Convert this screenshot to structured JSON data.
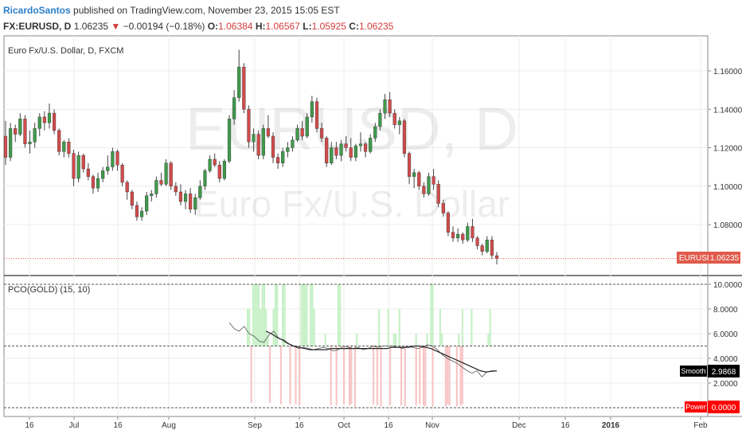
{
  "header": {
    "author": "RicardoSantos",
    "published_text": "published on TradingView.com, November 23, 2015 15:05 EST",
    "symbol": "FX:EURUSD, D",
    "last": "1.06235",
    "change": "−0.00194 (−0.18%)",
    "o_label": "O:",
    "o_value": "1.06384",
    "h_label": "H:",
    "h_value": "1.06567",
    "l_label": "L:",
    "l_value": "1.05925",
    "c_label": "C:",
    "c_value": "1.06235"
  },
  "main_pane": {
    "legend": "Euro Fx/U.S. Dollar, D, FXCM",
    "watermark_symbol": "EURUSD, D",
    "watermark_name": "Euro Fx/U.S. Dollar",
    "price_ticks": [
      "1.16000",
      "1.14000",
      "1.12000",
      "1.10000",
      "1.08000"
    ],
    "price_tick_values": [
      1.16,
      1.14,
      1.12,
      1.1,
      1.08
    ],
    "last_price_label": "EURUSD",
    "last_price_value": "1.06235",
    "last_price": 1.06235
  },
  "indicator_pane": {
    "legend": "PCO(GOLD) (15, 10)",
    "ticks": [
      "10.0000",
      "8.0000",
      "6.0000",
      "4.0000",
      "2.0000"
    ],
    "tick_values": [
      10,
      8,
      6,
      4,
      2
    ],
    "smooth_label": "Smooth",
    "smooth_value": "2.9868",
    "power_label": "Power",
    "power_value": "0.0000",
    "upper_level": 5,
    "lower_level": 0,
    "top_level": 10
  },
  "time_axis": {
    "labels": [
      "16",
      "Jul",
      "16",
      "Aug",
      "Sep",
      "16",
      "Oct",
      "16",
      "Nov",
      "Dec",
      "16",
      "2016",
      "Feb"
    ]
  },
  "colors": {
    "up": "#3f9a4a",
    "down": "#d24b4b",
    "power_up": "#c5f0c5",
    "power_down": "#f7c3c3",
    "smooth_line": "#333333",
    "last_price": "#e05a4b",
    "power_badge": "#ff0000",
    "smooth_badge": "#000000"
  },
  "chart_data": {
    "type": "candlestick",
    "ohlc": [
      [
        1.126,
        1.134,
        1.111,
        1.115
      ],
      [
        1.115,
        1.133,
        1.113,
        1.13
      ],
      [
        1.13,
        1.132,
        1.123,
        1.127
      ],
      [
        1.127,
        1.138,
        1.126,
        1.135
      ],
      [
        1.135,
        1.137,
        1.12,
        1.122
      ],
      [
        1.122,
        1.129,
        1.117,
        1.123
      ],
      [
        1.123,
        1.133,
        1.12,
        1.13
      ],
      [
        1.13,
        1.138,
        1.126,
        1.136
      ],
      [
        1.136,
        1.139,
        1.129,
        1.133
      ],
      [
        1.133,
        1.143,
        1.13,
        1.138
      ],
      [
        1.138,
        1.14,
        1.127,
        1.129
      ],
      [
        1.129,
        1.13,
        1.116,
        1.118
      ],
      [
        1.118,
        1.124,
        1.115,
        1.123
      ],
      [
        1.123,
        1.125,
        1.115,
        1.117
      ],
      [
        1.117,
        1.119,
        1.1,
        1.104
      ],
      [
        1.104,
        1.118,
        1.102,
        1.116
      ],
      [
        1.116,
        1.117,
        1.107,
        1.109
      ],
      [
        1.109,
        1.112,
        1.103,
        1.105
      ],
      [
        1.105,
        1.106,
        1.096,
        1.099
      ],
      [
        1.099,
        1.107,
        1.097,
        1.104
      ],
      [
        1.104,
        1.11,
        1.102,
        1.108
      ],
      [
        1.108,
        1.116,
        1.106,
        1.11
      ],
      [
        1.11,
        1.12,
        1.108,
        1.118
      ],
      [
        1.118,
        1.119,
        1.108,
        1.111
      ],
      [
        1.111,
        1.112,
        1.1,
        1.102
      ],
      [
        1.102,
        1.103,
        1.093,
        1.097
      ],
      [
        1.097,
        1.098,
        1.088,
        1.09
      ],
      [
        1.09,
        1.092,
        1.082,
        1.084
      ],
      [
        1.084,
        1.089,
        1.082,
        1.087
      ],
      [
        1.087,
        1.097,
        1.085,
        1.095
      ],
      [
        1.095,
        1.098,
        1.092,
        1.096
      ],
      [
        1.096,
        1.105,
        1.094,
        1.103
      ],
      [
        1.103,
        1.107,
        1.1,
        1.101
      ],
      [
        1.101,
        1.114,
        1.1,
        1.112
      ],
      [
        1.112,
        1.113,
        1.098,
        1.1
      ],
      [
        1.1,
        1.102,
        1.095,
        1.097
      ],
      [
        1.097,
        1.101,
        1.09,
        1.092
      ],
      [
        1.092,
        1.098,
        1.088,
        1.096
      ],
      [
        1.096,
        1.099,
        1.086,
        1.088
      ],
      [
        1.088,
        1.096,
        1.085,
        1.094
      ],
      [
        1.094,
        1.103,
        1.093,
        1.1
      ],
      [
        1.1,
        1.109,
        1.098,
        1.108
      ],
      [
        1.108,
        1.116,
        1.107,
        1.114
      ],
      [
        1.114,
        1.117,
        1.11,
        1.111
      ],
      [
        1.111,
        1.113,
        1.102,
        1.104
      ],
      [
        1.104,
        1.114,
        1.103,
        1.113
      ],
      [
        1.113,
        1.137,
        1.112,
        1.135
      ],
      [
        1.135,
        1.15,
        1.132,
        1.146
      ],
      [
        1.146,
        1.171,
        1.144,
        1.162
      ],
      [
        1.162,
        1.164,
        1.138,
        1.14
      ],
      [
        1.14,
        1.142,
        1.12,
        1.123
      ],
      [
        1.123,
        1.13,
        1.118,
        1.127
      ],
      [
        1.127,
        1.129,
        1.114,
        1.116
      ],
      [
        1.116,
        1.132,
        1.114,
        1.13
      ],
      [
        1.13,
        1.137,
        1.125,
        1.126
      ],
      [
        1.126,
        1.128,
        1.112,
        1.115
      ],
      [
        1.115,
        1.117,
        1.109,
        1.112
      ],
      [
        1.112,
        1.12,
        1.11,
        1.118
      ],
      [
        1.118,
        1.123,
        1.115,
        1.12
      ],
      [
        1.12,
        1.126,
        1.118,
        1.124
      ],
      [
        1.124,
        1.132,
        1.123,
        1.13
      ],
      [
        1.13,
        1.134,
        1.124,
        1.126
      ],
      [
        1.126,
        1.138,
        1.125,
        1.136
      ],
      [
        1.136,
        1.147,
        1.133,
        1.144
      ],
      [
        1.144,
        1.146,
        1.128,
        1.13
      ],
      [
        1.13,
        1.133,
        1.123,
        1.125
      ],
      [
        1.125,
        1.126,
        1.11,
        1.112
      ],
      [
        1.112,
        1.123,
        1.111,
        1.12
      ],
      [
        1.12,
        1.123,
        1.114,
        1.116
      ],
      [
        1.116,
        1.124,
        1.113,
        1.122
      ],
      [
        1.122,
        1.126,
        1.118,
        1.12
      ],
      [
        1.12,
        1.125,
        1.113,
        1.115
      ],
      [
        1.115,
        1.122,
        1.113,
        1.121
      ],
      [
        1.121,
        1.128,
        1.118,
        1.122
      ],
      [
        1.122,
        1.123,
        1.115,
        1.118
      ],
      [
        1.118,
        1.127,
        1.117,
        1.125
      ],
      [
        1.125,
        1.133,
        1.123,
        1.131
      ],
      [
        1.131,
        1.14,
        1.129,
        1.138
      ],
      [
        1.138,
        1.148,
        1.135,
        1.145
      ],
      [
        1.145,
        1.149,
        1.136,
        1.138
      ],
      [
        1.138,
        1.14,
        1.13,
        1.132
      ],
      [
        1.132,
        1.136,
        1.127,
        1.134
      ],
      [
        1.134,
        1.135,
        1.115,
        1.117
      ],
      [
        1.117,
        1.118,
        1.101,
        1.105
      ],
      [
        1.105,
        1.109,
        1.099,
        1.107
      ],
      [
        1.107,
        1.108,
        1.098,
        1.1
      ],
      [
        1.1,
        1.102,
        1.094,
        1.096
      ],
      [
        1.096,
        1.107,
        1.095,
        1.105
      ],
      [
        1.105,
        1.109,
        1.098,
        1.101
      ],
      [
        1.101,
        1.103,
        1.089,
        1.091
      ],
      [
        1.091,
        1.093,
        1.084,
        1.086
      ],
      [
        1.086,
        1.087,
        1.074,
        1.076
      ],
      [
        1.076,
        1.079,
        1.071,
        1.073
      ],
      [
        1.073,
        1.078,
        1.071,
        1.075
      ],
      [
        1.075,
        1.076,
        1.07,
        1.072
      ],
      [
        1.072,
        1.081,
        1.071,
        1.079
      ],
      [
        1.079,
        1.083,
        1.071,
        1.073
      ],
      [
        1.073,
        1.074,
        1.067,
        1.069
      ],
      [
        1.069,
        1.07,
        1.064,
        1.066
      ],
      [
        1.066,
        1.074,
        1.065,
        1.072
      ],
      [
        1.072,
        1.074,
        1.062,
        1.064
      ],
      [
        1.0638,
        1.0657,
        1.0593,
        1.0624
      ]
    ],
    "power_up": [
      0,
      0,
      0,
      0,
      0,
      0,
      0,
      0,
      0,
      0,
      0,
      0,
      0,
      0,
      0,
      0,
      0,
      0,
      0,
      0,
      0,
      0,
      0,
      0,
      0,
      0,
      0,
      0,
      0,
      0,
      0,
      0,
      0,
      0,
      0,
      0,
      0,
      0,
      0,
      0,
      0,
      0,
      0,
      8,
      8,
      0,
      10,
      10,
      10,
      10,
      8,
      10,
      10,
      8,
      6,
      0,
      0,
      8,
      10,
      10,
      0,
      0,
      10,
      10,
      0,
      0,
      0,
      0,
      0,
      0,
      0,
      0,
      10,
      10,
      10,
      10,
      0,
      10,
      10,
      8,
      0,
      0,
      0,
      0,
      0,
      6,
      0,
      0,
      0,
      0,
      0,
      0,
      10,
      10,
      0,
      0,
      0,
      0,
      0,
      0,
      0,
      0,
      6,
      0,
      0,
      0,
      0,
      0,
      0,
      0,
      0,
      0,
      0,
      0,
      8,
      0,
      0,
      0,
      0,
      8,
      0,
      0,
      6,
      6,
      0,
      8,
      0,
      0,
      0,
      0,
      0,
      0,
      0,
      0,
      6,
      0,
      0,
      0,
      0,
      0,
      6,
      0,
      10,
      10,
      0,
      0,
      0,
      8,
      6,
      0,
      0,
      0,
      0,
      0,
      0,
      0,
      0,
      6,
      0,
      8,
      0,
      0,
      0,
      0,
      8,
      0,
      0,
      0,
      0,
      0,
      0,
      0,
      0,
      6,
      8,
      0,
      0,
      0,
      0
    ],
    "power_down": [
      0,
      0,
      0,
      0,
      0,
      0,
      0,
      0,
      0,
      0,
      0,
      0,
      0,
      0,
      0,
      0,
      0,
      0,
      0,
      0,
      0,
      0,
      0,
      0,
      0,
      0,
      0,
      0,
      0,
      0,
      0,
      0,
      0,
      0,
      0,
      0,
      0,
      0,
      0,
      0,
      0,
      0,
      0,
      0,
      0,
      4,
      0,
      0,
      0,
      0,
      0,
      0,
      0,
      0,
      0,
      4,
      0,
      0,
      0,
      0,
      0,
      3,
      0,
      0,
      0,
      0,
      3,
      0,
      0,
      3,
      0,
      2,
      0,
      0,
      0,
      0,
      0,
      0,
      0,
      0,
      0,
      0,
      0,
      0,
      0,
      0,
      0,
      0,
      2,
      0,
      0,
      2,
      0,
      0,
      0,
      3,
      0,
      0,
      2,
      3,
      0,
      1,
      0,
      0,
      0,
      0,
      0,
      0,
      0,
      0,
      0,
      3,
      0,
      2,
      0,
      1,
      0,
      0,
      0,
      0,
      2,
      0,
      0,
      0,
      0,
      0,
      2,
      0,
      1,
      0,
      0,
      0,
      0,
      0,
      2,
      0,
      3,
      0,
      2,
      1,
      0,
      0,
      0,
      1,
      0,
      0,
      0,
      0,
      0,
      0,
      1,
      3,
      2,
      0,
      0,
      0,
      1,
      0,
      2,
      3,
      0,
      0,
      0,
      0,
      0,
      0,
      0,
      0,
      0,
      0
    ],
    "smooth_start_index": 45,
    "smooth": [
      6.9,
      6.4,
      6.2,
      6.6,
      6.0,
      5.8,
      5.4,
      5.3,
      5.9,
      6.2,
      5.6,
      5.5,
      5.2,
      5.0,
      4.8,
      4.9,
      4.8,
      4.7,
      4.8,
      4.9,
      4.8,
      4.6,
      4.7,
      5.0,
      4.9,
      4.8,
      4.9,
      4.7,
      4.8,
      5.0,
      4.9,
      5.0,
      5.0,
      5.0,
      4.9,
      4.8,
      5.0,
      4.9,
      4.8,
      4.9,
      5.1,
      5.0,
      4.7,
      4.3,
      4.0,
      3.8,
      3.6,
      3.3,
      3.0,
      2.8,
      3.0,
      2.5,
      2.9,
      3.0,
      2.99
    ],
    "signal_start_index": 52,
    "signal": [
      6.2,
      6.0,
      5.7,
      5.5,
      5.2,
      5.0,
      4.9,
      4.8,
      4.7,
      4.7,
      4.7,
      4.7,
      4.8,
      4.8,
      4.8,
      4.8,
      4.8,
      4.8,
      4.8,
      4.8,
      4.8,
      4.8,
      4.8,
      4.9,
      4.9,
      4.9,
      4.9,
      5.0,
      5.0,
      4.9,
      4.8,
      4.6,
      4.4,
      4.2,
      4.0,
      3.8,
      3.6,
      3.4,
      3.2,
      3.0,
      2.9,
      2.95,
      2.99
    ]
  }
}
